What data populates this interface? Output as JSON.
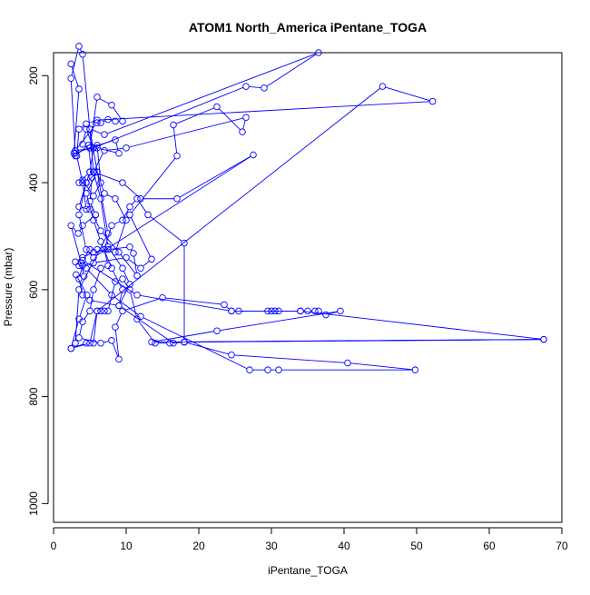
{
  "chart_data": {
    "type": "line",
    "title": "ATOM1 North_America iPentane_TOGA",
    "xlabel": "iPentane_TOGA",
    "ylabel": "Pressure (mbar)",
    "xlim": [
      0,
      70
    ],
    "ylim": [
      1035,
      157
    ],
    "y_reversed": true,
    "x_ticks": [
      0,
      10,
      20,
      30,
      40,
      50,
      60,
      70
    ],
    "y_ticks": [
      200,
      400,
      600,
      800,
      1000
    ],
    "grid": false,
    "legend": "none",
    "colors": {
      "series": "#0000ff",
      "axes": "#000000",
      "background": "#ffffff"
    },
    "series": [
      {
        "points": [
          [
            2.4,
            178
          ],
          [
            3.5,
            225
          ],
          [
            2.8,
            345
          ],
          [
            3.0,
            350
          ],
          [
            4.8,
            330
          ],
          [
            5.3,
            390
          ],
          [
            5.0,
            435
          ],
          [
            5.8,
            460
          ],
          [
            4.0,
            480
          ],
          [
            3.4,
            495
          ],
          [
            2.4,
            480
          ],
          [
            3.8,
            550
          ],
          [
            4.2,
            575
          ],
          [
            3.1,
            572
          ],
          [
            4.6,
            610
          ],
          [
            3.5,
            655
          ],
          [
            2.4,
            710
          ],
          [
            4.5,
            700
          ],
          [
            5.5,
            700
          ],
          [
            6.0,
            640
          ],
          [
            6.5,
            640
          ],
          [
            7.0,
            640
          ],
          [
            7.5,
            640
          ],
          [
            8.5,
            585
          ],
          [
            9.5,
            580
          ],
          [
            10.5,
            600
          ],
          [
            11.5,
            655
          ],
          [
            14.0,
            700
          ],
          [
            16.0,
            700
          ],
          [
            18.0,
            698
          ],
          [
            18.0,
            513
          ],
          [
            13.0,
            460
          ],
          [
            11.5,
            430
          ],
          [
            10.5,
            445
          ],
          [
            9.5,
            470
          ],
          [
            8.0,
            480
          ],
          [
            7.0,
            525
          ],
          [
            7.5,
            555
          ],
          [
            6.5,
            560
          ],
          [
            5.5,
            600
          ],
          [
            5.0,
            640
          ],
          [
            4.0,
            660
          ],
          [
            3.5,
            690
          ],
          [
            6.5,
            700
          ],
          [
            8.0,
            695
          ],
          [
            9.0,
            730
          ],
          [
            8.5,
            670
          ],
          [
            9.5,
            640
          ],
          [
            15.0,
            615
          ],
          [
            23.5,
            628
          ],
          [
            24.5,
            640
          ],
          [
            25.5,
            640
          ],
          [
            29.5,
            640
          ],
          [
            30.0,
            640
          ],
          [
            30.5,
            640
          ],
          [
            31.0,
            640
          ],
          [
            34.0,
            640
          ],
          [
            35.0,
            640
          ],
          [
            36.0,
            640
          ],
          [
            36.5,
            640
          ],
          [
            37.5,
            647
          ],
          [
            39.5,
            640
          ],
          [
            22.5,
            677
          ],
          [
            13.5,
            698
          ],
          [
            67.5,
            693
          ],
          [
            18.0,
            698
          ],
          [
            24.5,
            722
          ],
          [
            40.5,
            737
          ],
          [
            49.8,
            750
          ],
          [
            31.0,
            750
          ],
          [
            29.5,
            750
          ],
          [
            27.0,
            750
          ],
          [
            12.0,
            650
          ],
          [
            8.0,
            610
          ],
          [
            4.5,
            560
          ],
          [
            3.5,
            555
          ],
          [
            3.0,
            548
          ],
          [
            4.0,
            540
          ],
          [
            5.5,
            530
          ],
          [
            7.5,
            525
          ],
          [
            10.5,
            520
          ],
          [
            11.0,
            532
          ],
          [
            11.5,
            574
          ],
          [
            9.0,
            530
          ],
          [
            6.5,
            490
          ],
          [
            5.0,
            450
          ],
          [
            3.5,
            445
          ],
          [
            4.5,
            400
          ],
          [
            6.0,
            380
          ],
          [
            5.5,
            380
          ],
          [
            5.0,
            380
          ],
          [
            3.5,
            400
          ],
          [
            4.0,
            395
          ],
          [
            5.5,
            425
          ],
          [
            6.5,
            400
          ],
          [
            6.0,
            330
          ],
          [
            5.5,
            335
          ],
          [
            4.5,
            300
          ],
          [
            4.0,
            328
          ],
          [
            5.0,
            335
          ],
          [
            8.5,
            320
          ],
          [
            9.0,
            345
          ],
          [
            6.0,
            335
          ],
          [
            3.0,
            340
          ],
          [
            6.0,
            288
          ],
          [
            6.5,
            288
          ],
          [
            7.5,
            282
          ],
          [
            8.5,
            285
          ],
          [
            9.5,
            285
          ],
          [
            8.0,
            255
          ],
          [
            6.0,
            240
          ],
          [
            5.0,
            335
          ],
          [
            3.0,
            345
          ],
          [
            2.4,
            205
          ],
          [
            3.5,
            145
          ],
          [
            4.0,
            160
          ],
          [
            5.0,
            300
          ],
          [
            5.5,
            380
          ],
          [
            6.5,
            430
          ],
          [
            7.5,
            520
          ],
          [
            9.5,
            560
          ],
          [
            10.5,
            590
          ],
          [
            9.0,
            630
          ],
          [
            16.5,
            700
          ],
          [
            18.0,
            698
          ],
          [
            67.5,
            693
          ],
          [
            34.0,
            640
          ],
          [
            24.5,
            640
          ],
          [
            11.5,
            610
          ],
          [
            4.0,
            545
          ],
          [
            5.0,
            525
          ],
          [
            6.0,
            525
          ],
          [
            8.5,
            530
          ],
          [
            10.0,
            470
          ],
          [
            8.5,
            430
          ],
          [
            7.0,
            420
          ],
          [
            6.0,
            380
          ],
          [
            4.5,
            420
          ],
          [
            5.5,
            470
          ],
          [
            6.5,
            510
          ],
          [
            8.0,
            560
          ],
          [
            9.5,
            600
          ],
          [
            9.0,
            630
          ],
          [
            5.0,
            620
          ],
          [
            4.0,
            610
          ],
          [
            3.5,
            580
          ],
          [
            4.0,
            555
          ],
          [
            5.5,
            550
          ],
          [
            10.0,
            540
          ],
          [
            12.0,
            560
          ],
          [
            13.5,
            543
          ],
          [
            10.5,
            460
          ],
          [
            17.0,
            350
          ],
          [
            16.5,
            292
          ],
          [
            22.5,
            258
          ],
          [
            26.0,
            305
          ],
          [
            26.5,
            278
          ],
          [
            10.0,
            335
          ],
          [
            7.0,
            340
          ],
          [
            5.5,
            380
          ],
          [
            9.5,
            400
          ],
          [
            12.0,
            430
          ],
          [
            17.0,
            430
          ],
          [
            27.5,
            348
          ],
          [
            5.5,
            540
          ],
          [
            4.5,
            525
          ],
          [
            3.5,
            460
          ],
          [
            4.5,
            400
          ],
          [
            5.0,
            380
          ],
          [
            5.5,
            335
          ],
          [
            26.5,
            220
          ],
          [
            29.0,
            223
          ],
          [
            36.5,
            157
          ],
          [
            7.0,
            310
          ],
          [
            5.0,
            300
          ],
          [
            7.5,
            495
          ],
          [
            3.5,
            600
          ],
          [
            3.0,
            700
          ],
          [
            2.4,
            710
          ],
          [
            5.0,
            700
          ],
          [
            6.0,
            640
          ],
          [
            45.3,
            220
          ],
          [
            52.2,
            248
          ],
          [
            6.0,
            283
          ],
          [
            4.5,
            290
          ],
          [
            3.5,
            300
          ],
          [
            3.2,
            350
          ],
          [
            4.0,
            400
          ],
          [
            4.5,
            450
          ]
        ]
      }
    ]
  }
}
